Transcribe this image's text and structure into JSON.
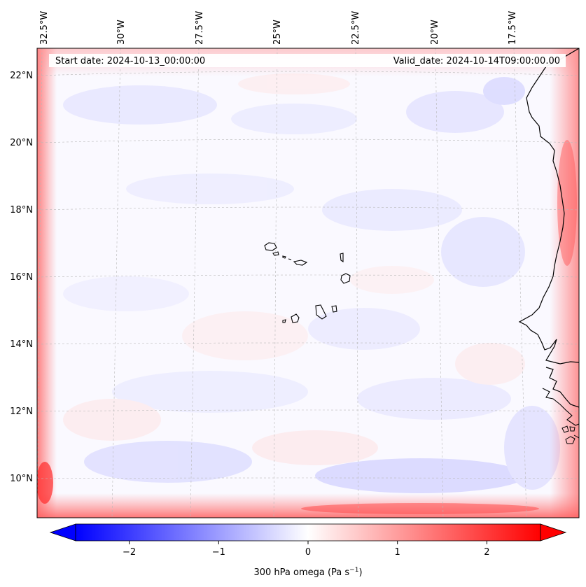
{
  "map": {
    "start_label": "Start date: 2024-10-13_00:00:00",
    "valid_label": "Valid_date: 2024-10-14T09:00:00.00",
    "lon_labels": [
      "32.5°W",
      "30°W",
      "27.5°W",
      "25°W",
      "22.5°W",
      "20°W",
      "17.5°W"
    ],
    "lat_labels": [
      "22°N",
      "20°N",
      "18°N",
      "16°N",
      "14°N",
      "12°N",
      "10°N"
    ],
    "features": [
      "cape-verde-islands",
      "west-africa-coastline"
    ]
  },
  "colorbar": {
    "label": "300 hPa omega (Pa s",
    "label_sup": "−1",
    "label_end": ")",
    "ticks": [
      "−2",
      "−1",
      "0",
      "1",
      "2"
    ],
    "tick_values": [
      -2,
      -1,
      0,
      1,
      2
    ],
    "range": [
      -2.6,
      2.6
    ],
    "colormap": "bwr",
    "extend": "both",
    "colors": {
      "min": "#0000ff",
      "mid": "#ffffff",
      "max": "#ff0000"
    }
  }
}
